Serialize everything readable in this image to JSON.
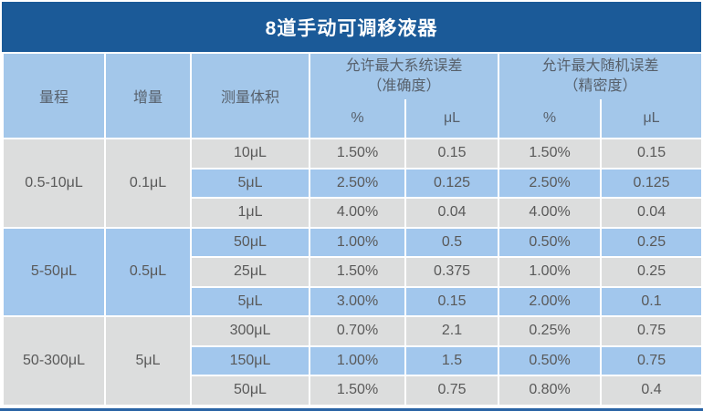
{
  "title": "8道手动可调移液器",
  "colors": {
    "title_bar": "#1b5a98",
    "title_text": "#ffffff",
    "header_bg": "#a3c7ea",
    "header_text": "#57606b",
    "row_gray": "#dcdddd",
    "row_blue": "#a2c7ed",
    "cell_text": "#595959",
    "divider": "#ffffff",
    "bottom_rule": "#2a64a5"
  },
  "header": {
    "range": "量程",
    "increment": "增量",
    "volume": "测量体积",
    "sys_line1": "允许最大系统误差",
    "sys_line2": "（准确度）",
    "rand_line1": "允许最大随机误差",
    "rand_line2": "（精密度）",
    "pct": "%",
    "ul": "μL"
  },
  "groups": [
    {
      "range": "0.5-10μL",
      "increment": "0.1μL",
      "rows": [
        {
          "volume": "10μL",
          "sys_pct": "1.50%",
          "sys_ul": "0.15",
          "rand_pct": "1.50%",
          "rand_ul": "0.15"
        },
        {
          "volume": "5μL",
          "sys_pct": "2.50%",
          "sys_ul": "0.125",
          "rand_pct": "2.50%",
          "rand_ul": "0.125"
        },
        {
          "volume": "1μL",
          "sys_pct": "4.00%",
          "sys_ul": "0.04",
          "rand_pct": "4.00%",
          "rand_ul": "0.04"
        }
      ]
    },
    {
      "range": "5-50μL",
      "increment": "0.5μL",
      "rows": [
        {
          "volume": "50μL",
          "sys_pct": "1.00%",
          "sys_ul": "0.5",
          "rand_pct": "0.50%",
          "rand_ul": "0.25"
        },
        {
          "volume": "25μL",
          "sys_pct": "1.50%",
          "sys_ul": "0.375",
          "rand_pct": "1.00%",
          "rand_ul": "0.25"
        },
        {
          "volume": "5μL",
          "sys_pct": "3.00%",
          "sys_ul": "0.15",
          "rand_pct": "2.00%",
          "rand_ul": "0.1"
        }
      ]
    },
    {
      "range": "50-300μL",
      "increment": "5μL",
      "rows": [
        {
          "volume": "300μL",
          "sys_pct": "0.70%",
          "sys_ul": "2.1",
          "rand_pct": "0.25%",
          "rand_ul": "0.75"
        },
        {
          "volume": "150μL",
          "sys_pct": "1.00%",
          "sys_ul": "1.5",
          "rand_pct": "0.50%",
          "rand_ul": "0.75"
        },
        {
          "volume": "50μL",
          "sys_pct": "1.50%",
          "sys_ul": "0.75",
          "rand_pct": "0.80%",
          "rand_ul": "0.4"
        }
      ]
    }
  ],
  "chart_data": {
    "type": "table",
    "title": "8道手动可调移液器",
    "columns": [
      "量程",
      "增量",
      "测量体积",
      "允许最大系统误差（准确度） %",
      "允许最大系统误差（准确度） μL",
      "允许最大随机误差（精密度） %",
      "允许最大随机误差（精密度） μL"
    ],
    "rows": [
      [
        "0.5-10μL",
        "0.1μL",
        "10μL",
        "1.50%",
        "0.15",
        "1.50%",
        "0.15"
      ],
      [
        "0.5-10μL",
        "0.1μL",
        "5μL",
        "2.50%",
        "0.125",
        "2.50%",
        "0.125"
      ],
      [
        "0.5-10μL",
        "0.1μL",
        "1μL",
        "4.00%",
        "0.04",
        "4.00%",
        "0.04"
      ],
      [
        "5-50μL",
        "0.5μL",
        "50μL",
        "1.00%",
        "0.5",
        "0.50%",
        "0.25"
      ],
      [
        "5-50μL",
        "0.5μL",
        "25μL",
        "1.50%",
        "0.375",
        "1.00%",
        "0.25"
      ],
      [
        "5-50μL",
        "0.5μL",
        "5μL",
        "3.00%",
        "0.15",
        "2.00%",
        "0.1"
      ],
      [
        "50-300μL",
        "5μL",
        "300μL",
        "0.70%",
        "2.1",
        "0.25%",
        "0.75"
      ],
      [
        "50-300μL",
        "5μL",
        "150μL",
        "1.00%",
        "1.5",
        "0.50%",
        "0.75"
      ],
      [
        "50-300μL",
        "5μL",
        "50μL",
        "1.50%",
        "0.75",
        "0.80%",
        "0.4"
      ]
    ]
  }
}
